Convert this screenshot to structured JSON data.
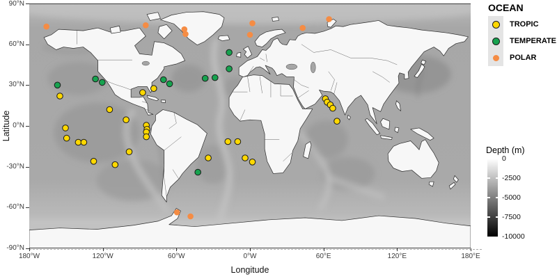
{
  "figure": {
    "type": "map-scatter",
    "x_axis": {
      "label": "Longitude",
      "tick_labels": [
        "180°W",
        "120°W",
        "60°W",
        "0°W",
        "60°E",
        "120°E",
        "180°E"
      ],
      "tick_values": [
        -180,
        -120,
        -60,
        0,
        60,
        120,
        180
      ]
    },
    "y_axis": {
      "label": "Latitude",
      "tick_labels": [
        "90°N",
        "60°N",
        "30°N",
        "0°N",
        "-30°N",
        "-60°N",
        "-90°N"
      ],
      "tick_values": [
        90,
        60,
        30,
        0,
        -30,
        -60,
        -90
      ]
    }
  },
  "legend": {
    "title": "OCEAN",
    "items": [
      {
        "label": "TROPIC",
        "color": "#ffd800",
        "outlined": true
      },
      {
        "label": "TEMPERATE",
        "color": "#17a24f",
        "outlined": true
      },
      {
        "label": "POLAR",
        "color": "#f58c44",
        "outlined": false
      }
    ]
  },
  "colorbar": {
    "title": "Depth (m)",
    "tick_labels": [
      "0",
      "-2500",
      "-5000",
      "-7500",
      "-10000"
    ],
    "tick_values": [
      0,
      -2500,
      -5000,
      -7500,
      -10000
    ],
    "gradient_top": "#ffffff",
    "gradient_bottom": "#000000"
  },
  "chart_data": {
    "type": "scatter",
    "projection": "equirectangular",
    "xlabel": "Longitude",
    "ylabel": "Latitude",
    "xlim": [
      -180,
      180
    ],
    "ylim": [
      -90,
      90
    ],
    "units": "degrees longitude / latitude",
    "legend_position": "right",
    "series": [
      {
        "name": "TROPIC",
        "color": "#ffd800",
        "outline": "#1a1a1a",
        "points": [
          [
            -155,
            22
          ],
          [
            -114.5,
            12
          ],
          [
            -101,
            4.5
          ],
          [
            -150.5,
            -1.5
          ],
          [
            -149.5,
            -9
          ],
          [
            -140,
            -12
          ],
          [
            -135.5,
            -12
          ],
          [
            -127.5,
            -26
          ],
          [
            -110,
            -28.5
          ],
          [
            -98.5,
            -19
          ],
          [
            -84.5,
            0.5
          ],
          [
            -84,
            -2.5
          ],
          [
            -84.5,
            -4.5
          ],
          [
            -84.5,
            -8
          ],
          [
            -87.5,
            24.5
          ],
          [
            -78.5,
            27.5
          ],
          [
            -18,
            -11.5
          ],
          [
            -10,
            -11.5
          ],
          [
            -34,
            -23.5
          ],
          [
            -4,
            -23.5
          ],
          [
            2,
            -26.5
          ],
          [
            61.5,
            20
          ],
          [
            63,
            17.5
          ],
          [
            65.5,
            15.5
          ],
          [
            67.5,
            13
          ],
          [
            71,
            3.5
          ]
        ]
      },
      {
        "name": "TEMPERATE",
        "color": "#17a24f",
        "outline": "#1a1a1a",
        "points": [
          [
            -157,
            30
          ],
          [
            -126,
            34.5
          ],
          [
            -120.5,
            32
          ],
          [
            -70.5,
            34
          ],
          [
            -65.5,
            31
          ],
          [
            -36.5,
            35
          ],
          [
            -28.5,
            35.5
          ],
          [
            -17,
            54
          ],
          [
            -17,
            42
          ],
          [
            -42.5,
            -34
          ]
        ]
      },
      {
        "name": "POLAR",
        "color": "#f58c44",
        "outline": null,
        "points": [
          [
            -166,
            73
          ],
          [
            -85,
            74
          ],
          [
            -53.5,
            71
          ],
          [
            -52.5,
            67.5
          ],
          [
            2,
            75.5
          ],
          [
            0,
            67
          ],
          [
            43,
            72
          ],
          [
            64.5,
            78.5
          ],
          [
            -59.5,
            -63.5
          ],
          [
            -48.5,
            -66.5
          ]
        ]
      }
    ]
  }
}
